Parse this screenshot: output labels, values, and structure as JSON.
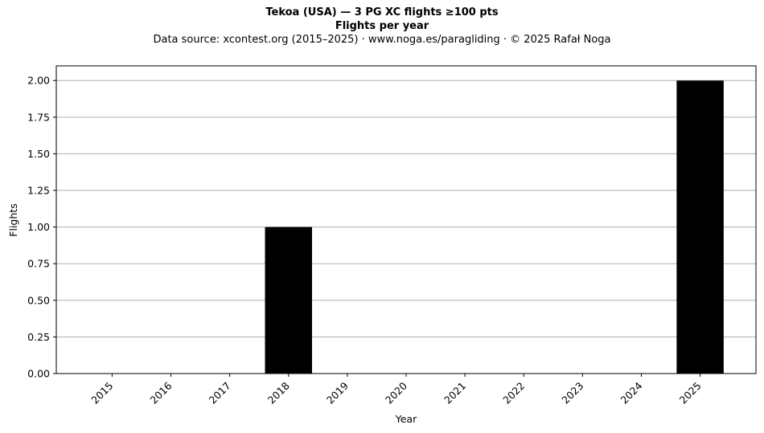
{
  "header": {
    "title": "Tekoa (USA)  —  3 PG XC flights ≥100 pts",
    "subtitle": "Flights per year",
    "source": "Data source: xcontest.org (2015–2025)  ·  www.noga.es/paragliding  ·  © 2025 Rafał Noga"
  },
  "chart_data": {
    "type": "bar",
    "title": "Tekoa (USA)  —  3 PG XC flights ≥100 pts",
    "subtitle": "Flights per year",
    "xlabel": "Year",
    "ylabel": "Flights",
    "categories": [
      "2015",
      "2016",
      "2017",
      "2018",
      "2019",
      "2020",
      "2021",
      "2022",
      "2023",
      "2024",
      "2025"
    ],
    "values": [
      0,
      0,
      0,
      1,
      0,
      0,
      0,
      0,
      0,
      0,
      2
    ],
    "ylim": [
      0,
      2.1
    ],
    "yticks": [
      "0.00",
      "0.25",
      "0.50",
      "0.75",
      "1.00",
      "1.25",
      "1.50",
      "1.75",
      "2.00"
    ],
    "grid": "y",
    "bar_color": "#000000",
    "grid_color": "#b0b0b0"
  }
}
